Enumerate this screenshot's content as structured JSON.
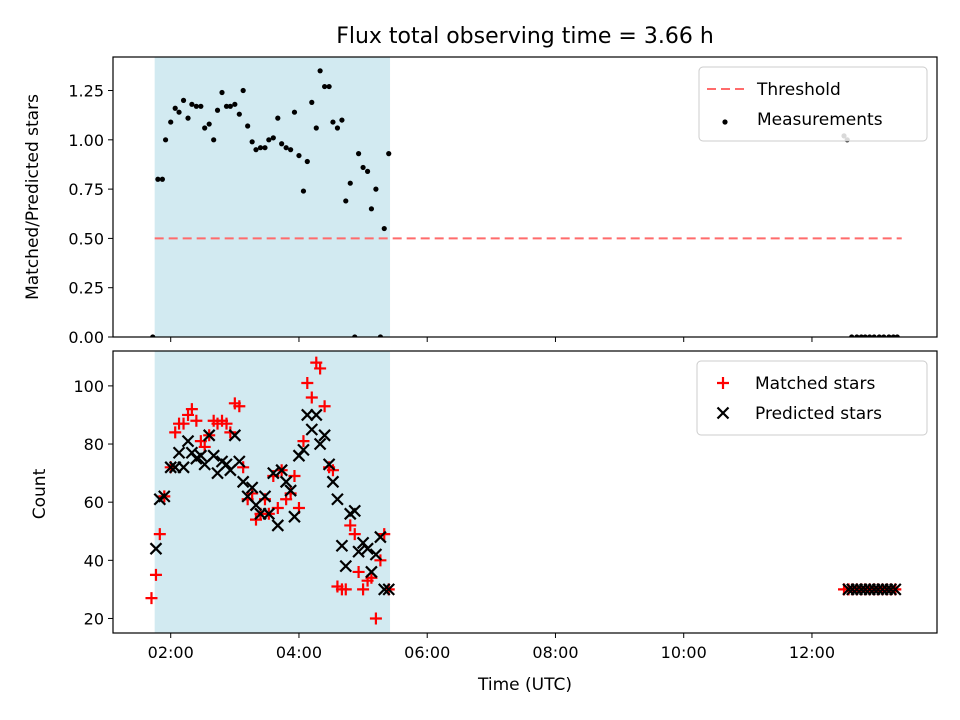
{
  "chart_data": [
    {
      "type": "scatter",
      "title": "Flux total observing time = 3.66 h",
      "xlabel": "",
      "ylabel": "Matched/Predicted stars",
      "ylim": [
        0,
        1.42
      ],
      "xlim": [
        1.1,
        13.95
      ],
      "yticks": [
        0.0,
        0.25,
        0.5,
        0.75,
        1.0,
        1.25
      ],
      "ytick_labels": [
        "0.00",
        "0.25",
        "0.50",
        "0.75",
        "1.00",
        "1.25"
      ],
      "shaded_span": [
        1.75,
        5.42
      ],
      "shade_color": "#add8e6",
      "legend_position": "upper right",
      "threshold": {
        "name": "Threshold",
        "y": 0.5,
        "x": [
          1.75,
          13.4
        ],
        "color": "#ff6b6b",
        "style": "dashed"
      },
      "series": [
        {
          "name": "Measurements",
          "marker": "dot",
          "color": "#000000",
          "x": [
            1.72,
            1.8,
            1.87,
            1.92,
            2.0,
            2.07,
            2.13,
            2.2,
            2.27,
            2.33,
            2.4,
            2.47,
            2.53,
            2.6,
            2.67,
            2.73,
            2.8,
            2.87,
            2.93,
            3.0,
            3.07,
            3.13,
            3.2,
            3.27,
            3.33,
            3.4,
            3.47,
            3.53,
            3.6,
            3.67,
            3.73,
            3.8,
            3.87,
            3.93,
            4.0,
            4.07,
            4.13,
            4.2,
            4.27,
            4.33,
            4.4,
            4.47,
            4.53,
            4.6,
            4.67,
            4.73,
            4.8,
            4.87,
            4.93,
            5.0,
            5.07,
            5.13,
            5.2,
            5.27,
            5.33,
            5.4,
            12.5,
            12.55,
            12.62,
            12.7,
            12.77,
            12.83,
            12.9,
            12.97,
            13.05,
            13.12,
            13.2,
            13.27,
            13.33
          ],
          "y": [
            0.0,
            0.8,
            0.8,
            1.0,
            1.09,
            1.16,
            1.14,
            1.2,
            1.11,
            1.18,
            1.17,
            1.17,
            1.06,
            1.08,
            1.0,
            1.15,
            1.24,
            1.17,
            1.17,
            1.18,
            1.13,
            1.25,
            1.07,
            0.99,
            0.95,
            0.96,
            0.96,
            1.0,
            1.01,
            1.11,
            0.98,
            0.96,
            0.95,
            1.14,
            0.92,
            0.74,
            0.89,
            1.19,
            1.06,
            1.35,
            1.27,
            1.27,
            1.09,
            1.06,
            1.1,
            0.69,
            0.78,
            0.0,
            0.93,
            0.86,
            0.84,
            0.65,
            0.75,
            0.0,
            0.55,
            0.93,
            1.02,
            1.0,
            0.0,
            0.0,
            0.0,
            0.0,
            0.0,
            0.0,
            0.0,
            0.0,
            0.0,
            0.0,
            0.0
          ]
        }
      ]
    },
    {
      "type": "scatter",
      "title": "",
      "xlabel": "Time (UTC)",
      "ylabel": "Count",
      "ylim": [
        15,
        112
      ],
      "xlim": [
        1.1,
        13.95
      ],
      "yticks": [
        20,
        40,
        60,
        80,
        100
      ],
      "ytick_labels": [
        "20",
        "40",
        "60",
        "80",
        "100"
      ],
      "xticks": [
        2,
        4,
        6,
        8,
        10,
        12
      ],
      "xtick_labels": [
        "02:00",
        "04:00",
        "06:00",
        "08:00",
        "10:00",
        "12:00"
      ],
      "shaded_span": [
        1.75,
        5.42
      ],
      "shade_color": "#add8e6",
      "legend_position": "upper right",
      "series": [
        {
          "name": "Matched stars",
          "marker": "plus",
          "color": "#ff0000",
          "x": [
            1.7,
            1.77,
            1.83,
            1.9,
            2.0,
            2.07,
            2.13,
            2.2,
            2.27,
            2.33,
            2.4,
            2.47,
            2.53,
            2.6,
            2.67,
            2.73,
            2.8,
            2.87,
            2.93,
            3.0,
            3.07,
            3.13,
            3.2,
            3.27,
            3.33,
            3.4,
            3.47,
            3.53,
            3.6,
            3.67,
            3.73,
            3.8,
            3.87,
            3.93,
            4.0,
            4.07,
            4.13,
            4.2,
            4.27,
            4.33,
            4.4,
            4.47,
            4.53,
            4.6,
            4.67,
            4.73,
            4.8,
            4.87,
            4.93,
            5.0,
            5.07,
            5.13,
            5.2,
            5.27,
            5.33,
            5.4,
            12.5,
            12.57,
            12.63,
            12.7,
            12.77,
            12.83,
            12.9,
            12.97,
            13.03,
            13.1,
            13.17,
            13.23,
            13.3
          ],
          "y": [
            27,
            35,
            49,
            62,
            72,
            84,
            87,
            87,
            90,
            92,
            88,
            81,
            79,
            83,
            88,
            87,
            88,
            87,
            84,
            94,
            93,
            72,
            61,
            63,
            54,
            56,
            61,
            56,
            69,
            58,
            71,
            61,
            63,
            69,
            58,
            81,
            101,
            96,
            108,
            106,
            93,
            72,
            71,
            31,
            30,
            30,
            52,
            49,
            36,
            30,
            33,
            34,
            20,
            40,
            49,
            30,
            30,
            30,
            30,
            30,
            30,
            30,
            30,
            30,
            30,
            30,
            30,
            30,
            30
          ]
        },
        {
          "name": "Predicted stars",
          "marker": "x",
          "color": "#000000",
          "x": [
            1.77,
            1.83,
            1.9,
            2.0,
            2.07,
            2.13,
            2.2,
            2.27,
            2.33,
            2.4,
            2.47,
            2.53,
            2.6,
            2.67,
            2.73,
            2.8,
            2.87,
            2.93,
            3.0,
            3.07,
            3.13,
            3.2,
            3.27,
            3.33,
            3.4,
            3.47,
            3.53,
            3.6,
            3.67,
            3.73,
            3.8,
            3.87,
            3.93,
            4.0,
            4.07,
            4.13,
            4.2,
            4.27,
            4.33,
            4.4,
            4.47,
            4.53,
            4.6,
            4.67,
            4.73,
            4.8,
            4.87,
            4.93,
            5.0,
            5.07,
            5.13,
            5.2,
            5.27,
            5.33,
            5.4,
            12.57,
            12.63,
            12.7,
            12.77,
            12.83,
            12.9,
            12.97,
            13.03,
            13.1,
            13.17,
            13.23,
            13.3
          ],
          "y": [
            44,
            61,
            62,
            72,
            72,
            77,
            72,
            81,
            77,
            75,
            76,
            73,
            83,
            76,
            70,
            74,
            73,
            71,
            83,
            74,
            67,
            62,
            65,
            59,
            56,
            62,
            56,
            70,
            52,
            71,
            67,
            64,
            55,
            76,
            78,
            90,
            85,
            90,
            80,
            83,
            73,
            67,
            61,
            45,
            38,
            56,
            57,
            43,
            46,
            44,
            36,
            42,
            48,
            30,
            30,
            30,
            30,
            30,
            30,
            30,
            30,
            30,
            30,
            30,
            30,
            30,
            30
          ]
        }
      ]
    }
  ]
}
